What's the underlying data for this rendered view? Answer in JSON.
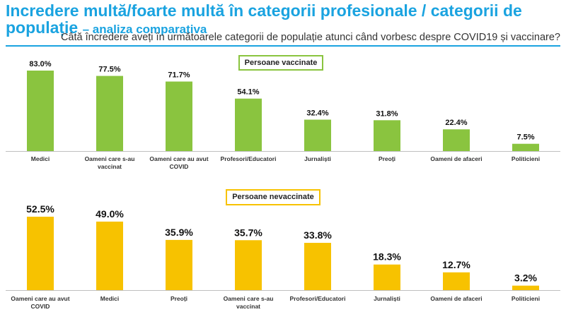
{
  "header": {
    "title_main": "Incredere multă/foarte multă în categorii profesionale / categorii de populație",
    "title_sub": "– analiza comparativa",
    "question": "Câtă încredere aveți în următoarele categorii de populație atunci când vorbesc despre COVID19 și vaccinare?"
  },
  "colors": {
    "accent": "#1aa3e0",
    "vaccinated": "#8ac43f",
    "unvaccinated": "#f7c200"
  },
  "chart_data": [
    {
      "type": "bar",
      "legend": "Persoane vaccinate",
      "color": "#8ac43f",
      "categories": [
        [
          "Medici"
        ],
        [
          "Oameni care s-au",
          "vaccinat"
        ],
        [
          "Oameni care au avut",
          "COVID"
        ],
        [
          "Profesori/Educatori"
        ],
        [
          "Jurnaliști"
        ],
        [
          "Preoți"
        ],
        [
          "Oameni de afaceri"
        ],
        [
          "Politicieni"
        ]
      ],
      "values": [
        83.0,
        77.5,
        71.7,
        54.1,
        32.4,
        31.8,
        22.4,
        7.5
      ],
      "labels": [
        "83.0%",
        "77.5%",
        "71.7%",
        "54.1%",
        "32.4%",
        "31.8%",
        "22.4%",
        "7.5%"
      ],
      "ylim": [
        0,
        100
      ]
    },
    {
      "type": "bar",
      "legend": "Persoane nevaccinate",
      "color": "#f7c200",
      "categories": [
        [
          "Oameni care au avut",
          "COVID"
        ],
        [
          "Medici"
        ],
        [
          "Preoți"
        ],
        [
          "Oameni care s-au",
          "vaccinat"
        ],
        [
          "Profesori/Educatori"
        ],
        [
          "Jurnaliști"
        ],
        [
          "Oameni de afaceri"
        ],
        [
          "Politicieni"
        ]
      ],
      "values": [
        52.5,
        49.0,
        35.9,
        35.7,
        33.8,
        18.3,
        12.7,
        3.2
      ],
      "labels": [
        "52.5%",
        "49.0%",
        "35.9%",
        "35.7%",
        "33.8%",
        "18.3%",
        "12.7%",
        "3.2%"
      ],
      "ylim": [
        0,
        100
      ]
    }
  ]
}
